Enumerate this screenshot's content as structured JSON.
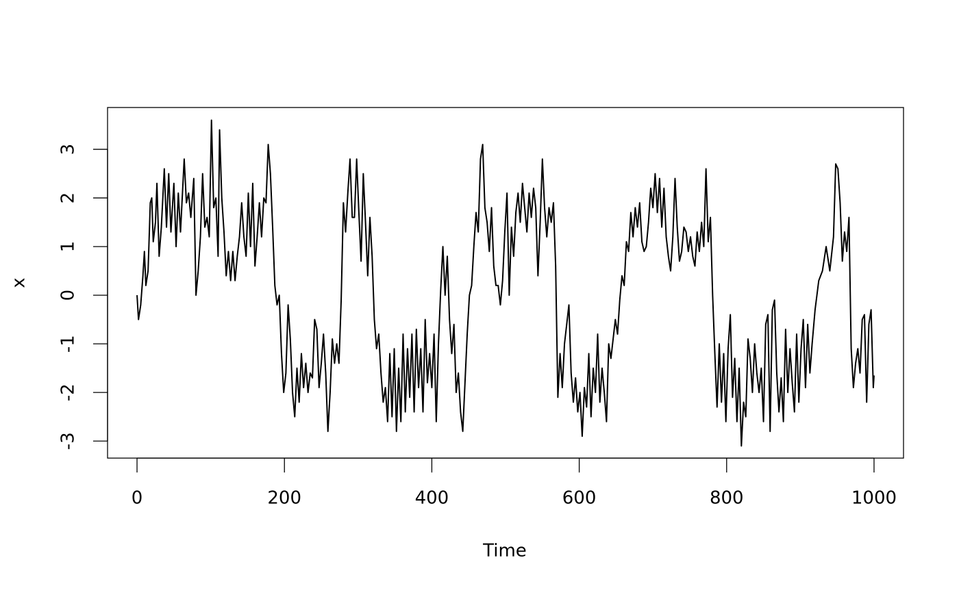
{
  "chart_data": {
    "type": "line",
    "x_label": "Time",
    "y_label": "x",
    "color": "#000000",
    "xlim": [
      -40,
      1040
    ],
    "ylim": [
      -3.35,
      3.86
    ],
    "xticks": [
      0,
      200,
      400,
      600,
      800,
      1000
    ],
    "yticks": [
      -3,
      -2,
      -1,
      0,
      1,
      2,
      3
    ],
    "x": [
      0,
      2,
      5,
      8,
      10,
      12,
      15,
      18,
      20,
      22,
      25,
      27,
      30,
      33,
      37,
      40,
      43,
      46,
      50,
      53,
      56,
      59,
      62,
      64,
      67,
      70,
      73,
      77,
      80,
      83,
      86,
      89,
      92,
      95,
      98,
      101,
      104,
      107,
      110,
      112,
      115,
      118,
      121,
      124,
      127,
      130,
      133,
      136,
      139,
      142,
      145,
      148,
      151,
      154,
      157,
      160,
      163,
      166,
      169,
      172,
      175,
      178,
      181,
      184,
      187,
      190,
      193,
      196,
      199,
      202,
      205,
      208,
      211,
      214,
      217,
      220,
      223,
      226,
      229,
      232,
      235,
      238,
      241,
      244,
      247,
      250,
      253,
      256,
      259,
      262,
      265,
      268,
      271,
      274,
      277,
      280,
      283,
      286,
      289,
      292,
      295,
      298,
      301,
      304,
      307,
      310,
      313,
      316,
      319,
      322,
      325,
      328,
      331,
      334,
      337,
      340,
      343,
      346,
      349,
      352,
      355,
      358,
      361,
      364,
      367,
      370,
      373,
      376,
      379,
      382,
      385,
      388,
      391,
      394,
      397,
      400,
      403,
      406,
      409,
      412,
      415,
      418,
      421,
      424,
      427,
      430,
      433,
      436,
      439,
      442,
      445,
      448,
      451,
      454,
      457,
      460,
      463,
      466,
      469,
      472,
      475,
      478,
      481,
      484,
      487,
      490,
      493,
      496,
      499,
      502,
      505,
      508,
      511,
      514,
      517,
      520,
      523,
      526,
      529,
      532,
      535,
      538,
      541,
      544,
      547,
      550,
      553,
      556,
      559,
      562,
      565,
      568,
      571,
      574,
      577,
      580,
      583,
      586,
      589,
      592,
      595,
      598,
      601,
      604,
      607,
      610,
      613,
      616,
      619,
      622,
      625,
      628,
      631,
      634,
      637,
      640,
      643,
      646,
      649,
      652,
      655,
      658,
      661,
      664,
      667,
      670,
      673,
      676,
      679,
      682,
      685,
      688,
      691,
      694,
      697,
      700,
      703,
      706,
      709,
      712,
      715,
      718,
      721,
      724,
      727,
      730,
      733,
      736,
      739,
      742,
      745,
      748,
      751,
      754,
      757,
      760,
      763,
      766,
      769,
      772,
      775,
      778,
      781,
      784,
      787,
      790,
      793,
      796,
      799,
      802,
      805,
      808,
      811,
      814,
      817,
      820,
      823,
      826,
      829,
      832,
      835,
      838,
      841,
      844,
      847,
      850,
      853,
      856,
      859,
      862,
      865,
      868,
      871,
      874,
      877,
      880,
      883,
      886,
      889,
      892,
      895,
      898,
      901,
      904,
      907,
      910,
      913,
      916,
      920,
      925,
      930,
      935,
      940,
      945,
      948,
      951,
      954,
      957,
      960,
      963,
      966,
      969,
      972,
      975,
      978,
      981,
      984,
      987,
      990,
      993,
      996,
      999,
      1000
    ],
    "values": [
      0,
      -0.5,
      -0.2,
      0.4,
      0.9,
      0.2,
      0.5,
      1.9,
      2.0,
      1.1,
      1.5,
      2.3,
      0.8,
      1.4,
      2.6,
      1.4,
      2.5,
      1.3,
      2.3,
      1.0,
      2.1,
      1.3,
      2.2,
      2.8,
      1.9,
      2.1,
      1.6,
      2.4,
      0.0,
      0.5,
      1.2,
      2.5,
      1.4,
      1.6,
      1.2,
      3.6,
      1.8,
      2.0,
      0.8,
      3.4,
      2.0,
      1.3,
      0.4,
      0.9,
      0.3,
      0.9,
      0.3,
      0.8,
      1.2,
      1.9,
      1.2,
      0.8,
      2.1,
      1.0,
      2.3,
      0.6,
      1.2,
      1.9,
      1.2,
      2.0,
      1.9,
      3.1,
      2.5,
      1.4,
      0.2,
      -0.2,
      0.0,
      -1.2,
      -2.0,
      -1.6,
      -0.2,
      -0.9,
      -2.0,
      -2.5,
      -1.5,
      -2.2,
      -1.2,
      -1.9,
      -1.4,
      -2.0,
      -1.6,
      -1.7,
      -0.5,
      -0.7,
      -1.9,
      -1.4,
      -0.8,
      -1.6,
      -2.8,
      -2.0,
      -0.9,
      -1.4,
      -1.0,
      -1.4,
      -0.1,
      1.9,
      1.3,
      2.1,
      2.8,
      1.6,
      1.6,
      2.8,
      1.7,
      0.7,
      2.5,
      1.5,
      0.4,
      1.6,
      0.8,
      -0.5,
      -1.1,
      -0.8,
      -1.6,
      -2.2,
      -1.9,
      -2.6,
      -1.2,
      -2.5,
      -1.1,
      -2.8,
      -1.5,
      -2.6,
      -0.8,
      -2.4,
      -1.1,
      -2.1,
      -0.8,
      -2.4,
      -0.7,
      -1.9,
      -1.1,
      -2.4,
      -0.5,
      -1.8,
      -1.2,
      -1.9,
      -0.8,
      -2.6,
      -1.0,
      0.1,
      1.0,
      0.0,
      0.8,
      -0.5,
      -1.2,
      -0.6,
      -2.0,
      -1.6,
      -2.4,
      -2.8,
      -1.8,
      -0.8,
      0.0,
      0.2,
      1.0,
      1.7,
      1.3,
      2.8,
      3.1,
      1.8,
      1.5,
      0.9,
      1.8,
      0.6,
      0.2,
      0.2,
      -0.2,
      0.3,
      1.3,
      2.1,
      0.0,
      1.4,
      0.8,
      1.7,
      2.1,
      1.5,
      2.3,
      1.8,
      1.3,
      2.1,
      1.6,
      2.2,
      1.8,
      0.4,
      1.5,
      2.8,
      1.8,
      1.2,
      1.8,
      1.5,
      1.9,
      0.6,
      -2.1,
      -1.2,
      -1.9,
      -1.0,
      -0.6,
      -0.2,
      -1.6,
      -2.2,
      -1.7,
      -2.4,
      -2.0,
      -2.9,
      -1.9,
      -2.3,
      -1.2,
      -2.5,
      -1.5,
      -2.0,
      -0.8,
      -2.2,
      -1.5,
      -2.0,
      -2.6,
      -1.0,
      -1.3,
      -0.9,
      -0.5,
      -0.8,
      -0.1,
      0.4,
      0.2,
      1.1,
      0.9,
      1.7,
      1.2,
      1.8,
      1.4,
      1.9,
      1.1,
      0.9,
      1.0,
      1.5,
      2.2,
      1.8,
      2.5,
      1.7,
      2.4,
      1.4,
      2.2,
      1.2,
      0.8,
      0.5,
      1.2,
      2.4,
      1.4,
      0.7,
      0.9,
      1.4,
      1.3,
      0.9,
      1.2,
      0.8,
      0.6,
      1.3,
      0.9,
      1.5,
      1.0,
      2.6,
      1.1,
      1.6,
      0.0,
      -1.2,
      -2.3,
      -1.0,
      -2.2,
      -1.2,
      -2.6,
      -1.1,
      -0.4,
      -2.1,
      -1.3,
      -2.6,
      -1.5,
      -3.1,
      -2.2,
      -2.5,
      -0.9,
      -1.3,
      -2.0,
      -1.0,
      -1.6,
      -2.0,
      -1.5,
      -2.6,
      -0.6,
      -0.4,
      -2.8,
      -0.3,
      -0.1,
      -1.6,
      -2.4,
      -1.7,
      -2.6,
      -0.7,
      -2.0,
      -1.1,
      -1.8,
      -2.4,
      -0.8,
      -2.2,
      -1.1,
      -0.5,
      -1.9,
      -0.6,
      -1.6,
      -1.0,
      -0.3,
      0.3,
      0.5,
      1.0,
      0.5,
      1.2,
      2.7,
      2.6,
      1.9,
      0.7,
      1.3,
      0.9,
      1.6,
      -1.1,
      -1.9,
      -1.4,
      -1.1,
      -1.6,
      -0.5,
      -0.4,
      -2.2,
      -0.6,
      -0.3,
      -1.9,
      -1.65
    ]
  }
}
